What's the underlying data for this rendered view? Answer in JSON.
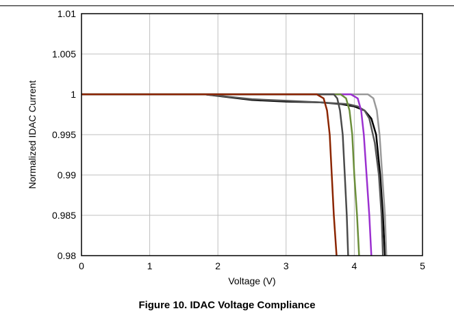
{
  "caption": "Figure 10. IDAC Voltage Compliance",
  "chart_data": {
    "type": "line",
    "title": "",
    "xlabel": "Voltage (V)",
    "ylabel": "Normalized IDAC Current",
    "xlim": [
      0,
      5
    ],
    "ylim": [
      0.98,
      1.01
    ],
    "xticks": [
      0,
      1,
      2,
      3,
      4,
      5
    ],
    "xtick_labels": [
      "0",
      "1",
      "2",
      "3",
      "4",
      "5"
    ],
    "yticks": [
      0.98,
      0.985,
      0.99,
      0.995,
      1,
      1.005,
      1.01
    ],
    "ytick_labels": [
      "0.98",
      "0.985",
      "0.99",
      "0.995",
      "1",
      "1.005",
      "1.01"
    ],
    "grid": true,
    "legend": "none",
    "series": [
      {
        "color": "#000000",
        "points": [
          [
            0,
            1
          ],
          [
            1.8,
            1
          ],
          [
            2.5,
            0.9993
          ],
          [
            3.0,
            0.9991
          ],
          [
            3.5,
            0.999
          ],
          [
            3.8,
            0.9988
          ],
          [
            4.0,
            0.9985
          ],
          [
            4.15,
            0.998
          ],
          [
            4.25,
            0.997
          ],
          [
            4.32,
            0.995
          ],
          [
            4.38,
            0.99
          ],
          [
            4.42,
            0.985
          ],
          [
            4.45,
            0.98
          ]
        ]
      },
      {
        "color": "#555555",
        "points": [
          [
            0,
            1
          ],
          [
            1.8,
            1
          ],
          [
            2.5,
            0.9994
          ],
          [
            3.0,
            0.9992
          ],
          [
            3.5,
            0.999
          ],
          [
            3.9,
            0.9988
          ],
          [
            4.05,
            0.9985
          ],
          [
            4.15,
            0.998
          ],
          [
            4.22,
            0.997
          ],
          [
            4.3,
            0.994
          ],
          [
            4.36,
            0.99
          ],
          [
            4.4,
            0.985
          ],
          [
            4.42,
            0.98
          ]
        ]
      },
      {
        "color": "#999999",
        "points": [
          [
            0,
            1
          ],
          [
            4.2,
            1
          ],
          [
            4.28,
            0.9995
          ],
          [
            4.33,
            0.998
          ],
          [
            4.37,
            0.995
          ],
          [
            4.41,
            0.99
          ],
          [
            4.45,
            0.985
          ],
          [
            4.47,
            0.98
          ]
        ]
      },
      {
        "color": "#9b30d0",
        "points": [
          [
            0,
            1
          ],
          [
            3.95,
            1
          ],
          [
            4.05,
            0.9995
          ],
          [
            4.1,
            0.998
          ],
          [
            4.14,
            0.995
          ],
          [
            4.18,
            0.99
          ],
          [
            4.22,
            0.985
          ],
          [
            4.25,
            0.98
          ]
        ]
      },
      {
        "color": "#6b8e3a",
        "points": [
          [
            0,
            1
          ],
          [
            3.8,
            1
          ],
          [
            3.88,
            0.9995
          ],
          [
            3.93,
            0.998
          ],
          [
            3.97,
            0.995
          ],
          [
            4.0,
            0.99
          ],
          [
            4.04,
            0.985
          ],
          [
            4.07,
            0.98
          ]
        ]
      },
      {
        "color": "#4a4a4a",
        "points": [
          [
            0,
            1
          ],
          [
            3.7,
            1
          ],
          [
            3.75,
            0.9995
          ],
          [
            3.79,
            0.998
          ],
          [
            3.83,
            0.995
          ],
          [
            3.86,
            0.99
          ],
          [
            3.89,
            0.985
          ],
          [
            3.91,
            0.98
          ]
        ]
      },
      {
        "color": "#8b2500",
        "points": [
          [
            0,
            1
          ],
          [
            3.45,
            1
          ],
          [
            3.55,
            0.9995
          ],
          [
            3.6,
            0.998
          ],
          [
            3.64,
            0.995
          ],
          [
            3.67,
            0.99
          ],
          [
            3.7,
            0.985
          ],
          [
            3.74,
            0.98
          ]
        ]
      }
    ]
  }
}
